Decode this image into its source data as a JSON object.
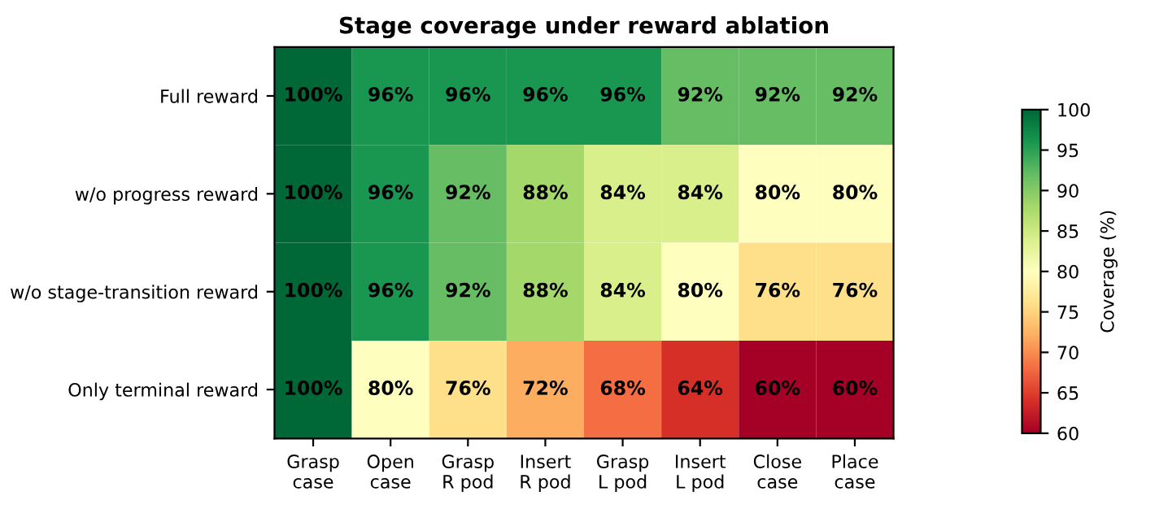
{
  "chart_data": {
    "type": "heatmap",
    "title": "Stage coverage under reward ablation",
    "clabel": "Coverage (%)",
    "categories": [
      "Grasp\ncase",
      "Open\ncase",
      "Grasp\nR pod",
      "Insert\nR pod",
      "Grasp\nL pod",
      "Insert\nL pod",
      "Close\ncase",
      "Place\ncase"
    ],
    "y_categories": [
      "Full reward",
      "w/o progress reward",
      "w/o stage-transition reward",
      "Only terminal reward"
    ],
    "cells": [
      [
        100,
        96,
        96,
        96,
        96,
        92,
        92,
        92
      ],
      [
        100,
        96,
        92,
        88,
        84,
        84,
        80,
        80
      ],
      [
        100,
        96,
        92,
        88,
        84,
        80,
        76,
        76
      ],
      [
        100,
        80,
        76,
        72,
        68,
        64,
        60,
        60
      ]
    ],
    "cell_labels": [
      [
        "100%",
        "96%",
        "96%",
        "96%",
        "96%",
        "92%",
        "92%",
        "92%"
      ],
      [
        "100%",
        "96%",
        "92%",
        "88%",
        "84%",
        "84%",
        "80%",
        "80%"
      ],
      [
        "100%",
        "96%",
        "92%",
        "88%",
        "84%",
        "80%",
        "76%",
        "76%"
      ],
      [
        "100%",
        "80%",
        "76%",
        "72%",
        "68%",
        "64%",
        "60%",
        "60%"
      ]
    ],
    "clim": [
      60,
      100
    ],
    "cticks": [
      60,
      65,
      70,
      75,
      80,
      85,
      90,
      95,
      100
    ]
  }
}
